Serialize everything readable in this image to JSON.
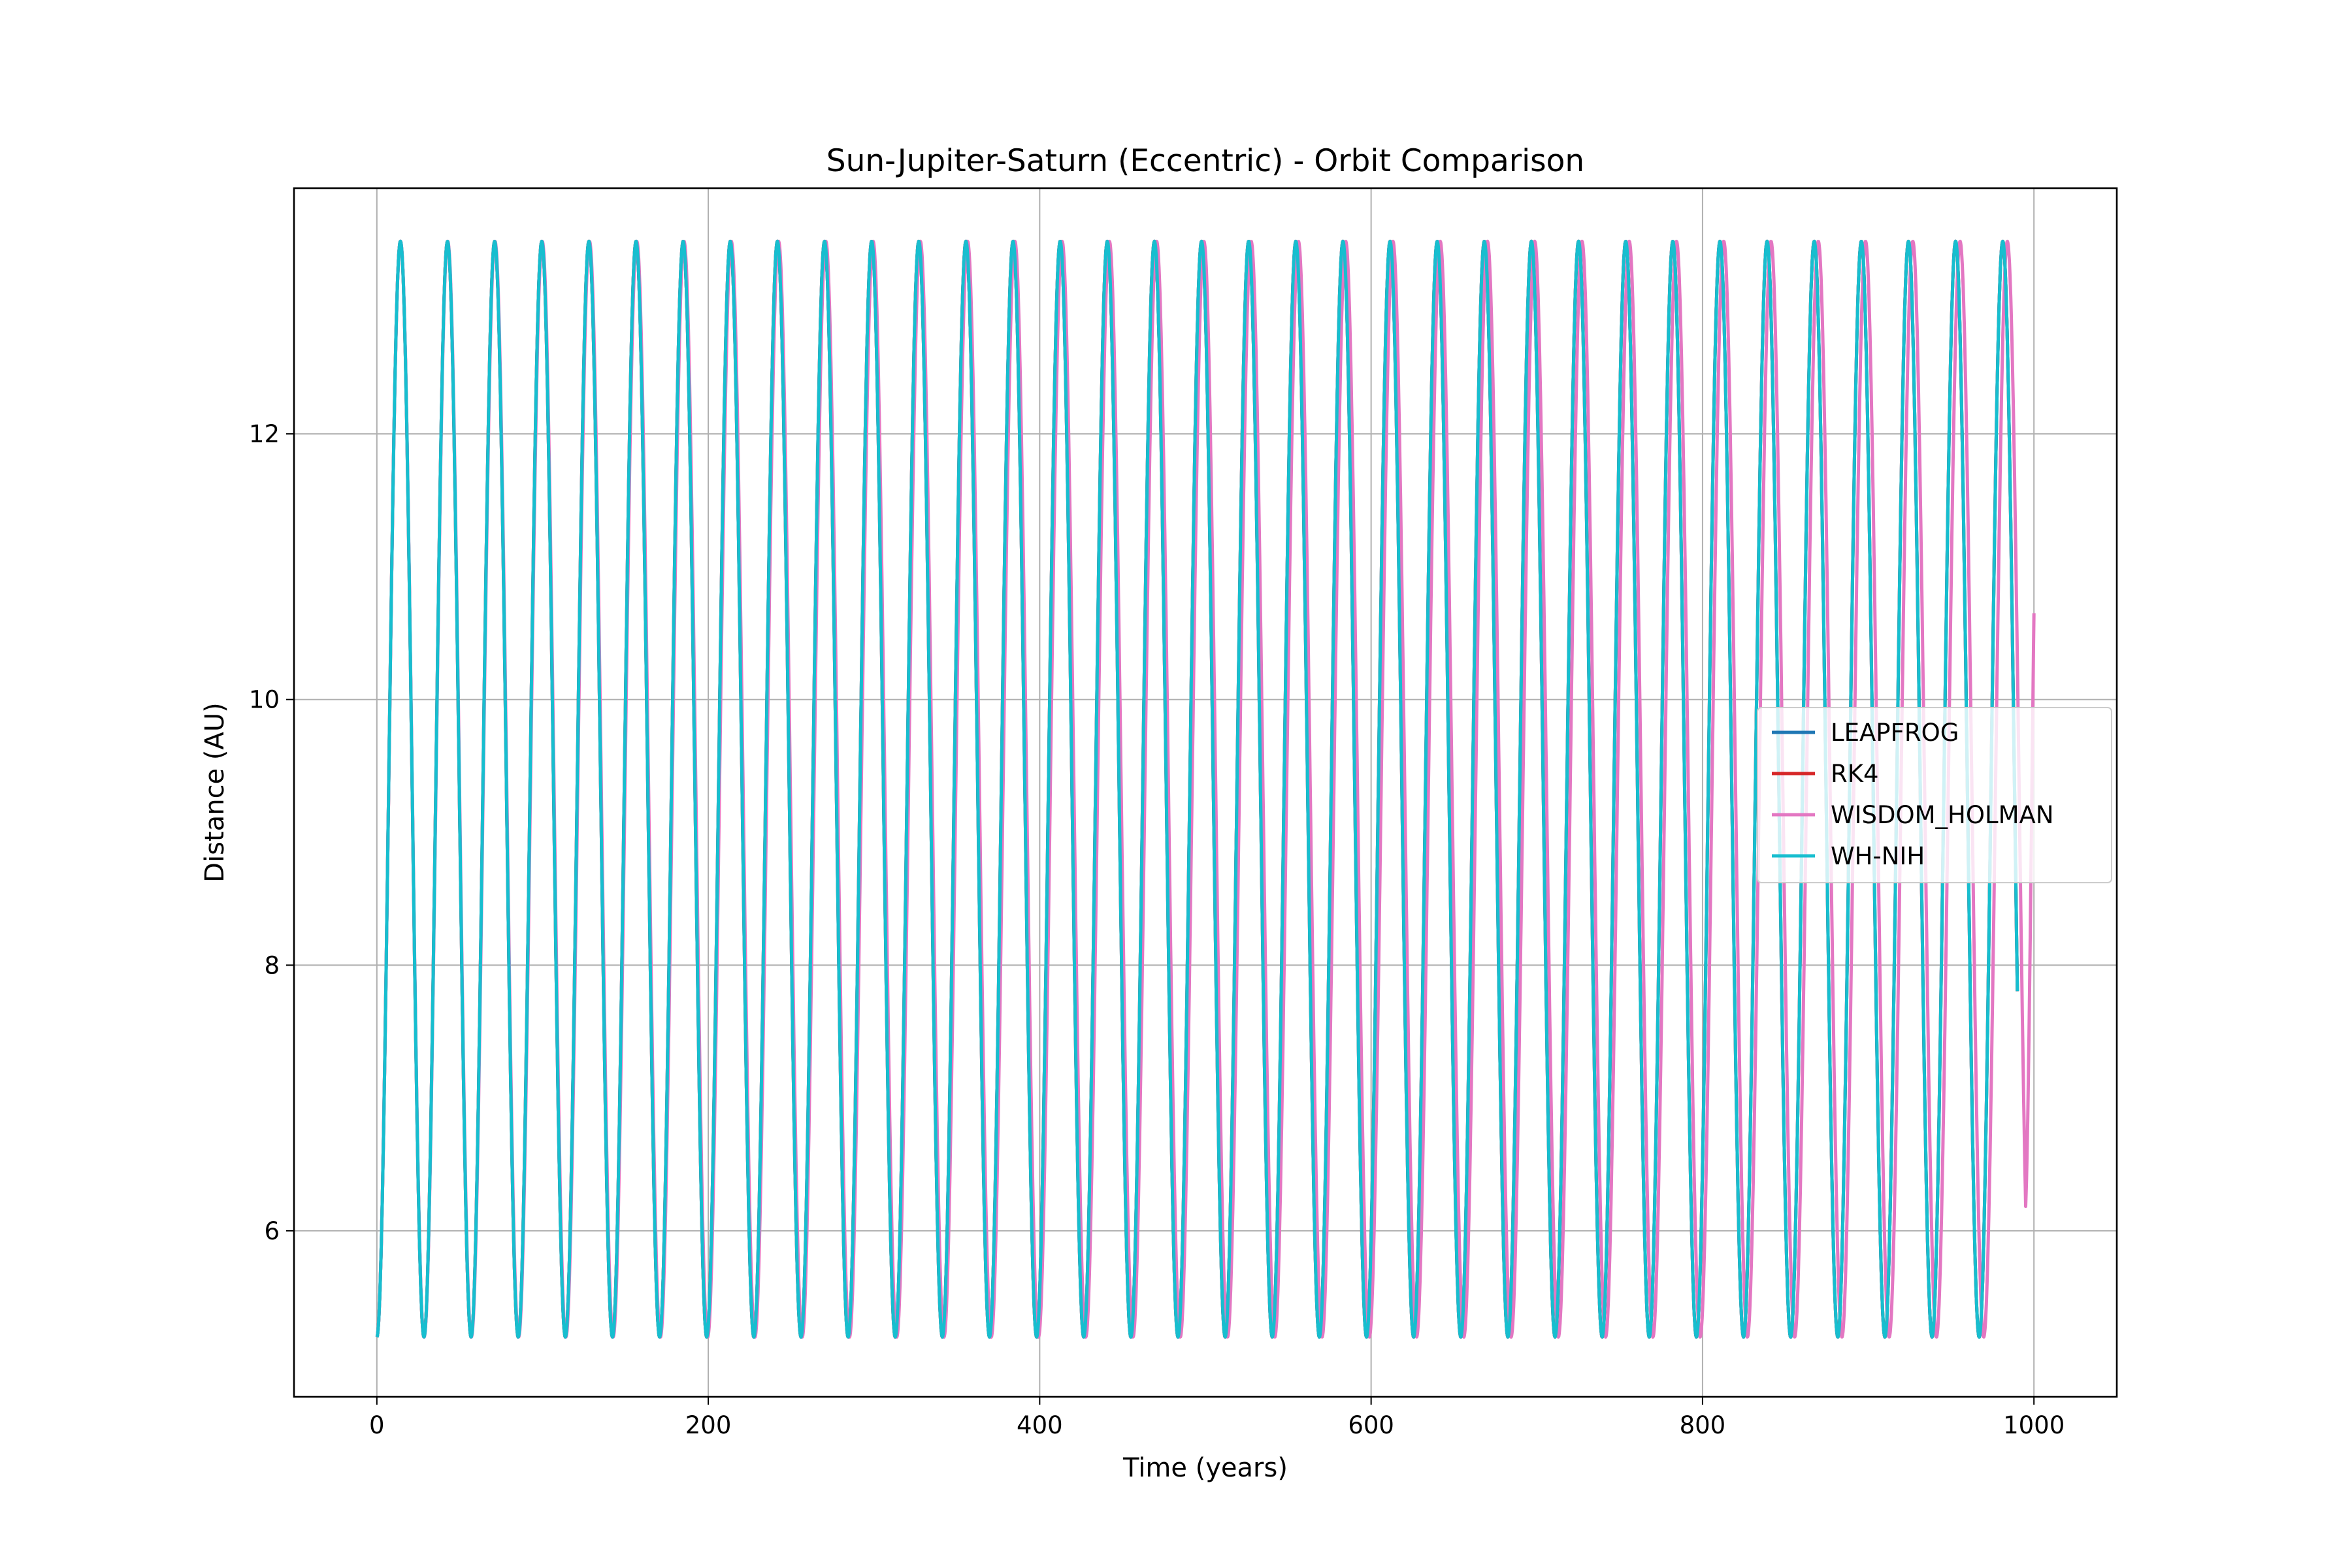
{
  "chart_data": {
    "type": "line",
    "title": "Sun-Jupiter-Saturn (Eccentric) - Orbit Comparison",
    "xlabel": "Time (years)",
    "ylabel": "Distance (AU)",
    "xlim": [
      -50,
      1050
    ],
    "ylim": [
      4.75,
      13.85
    ],
    "xticks": [
      0,
      200,
      400,
      600,
      800,
      1000
    ],
    "yticks": [
      6,
      8,
      10,
      12
    ],
    "xtick_labels": [
      "0",
      "200",
      "400",
      "600",
      "800",
      "1000"
    ],
    "ytick_labels": [
      "6",
      "8",
      "10",
      "12"
    ],
    "grid": true,
    "legend_position": "center-right",
    "x_range": [
      0,
      1000
    ],
    "distance_min": 5.2,
    "distance_max": 13.45,
    "final_value": 10.65,
    "series": [
      {
        "name": "LEAPFROG",
        "color": "#1f77b4",
        "period_years": 28.44,
        "end_year": 990
      },
      {
        "name": "RK4",
        "color": "#d62728",
        "period_years": 28.44,
        "end_year": 990
      },
      {
        "name": "WISDOM_HOLMAN",
        "color": "#e377c2",
        "period_years": 28.52,
        "end_year": 1000
      },
      {
        "name": "WH-NIH",
        "color": "#17becf",
        "period_years": 28.44,
        "end_year": 990
      }
    ]
  }
}
